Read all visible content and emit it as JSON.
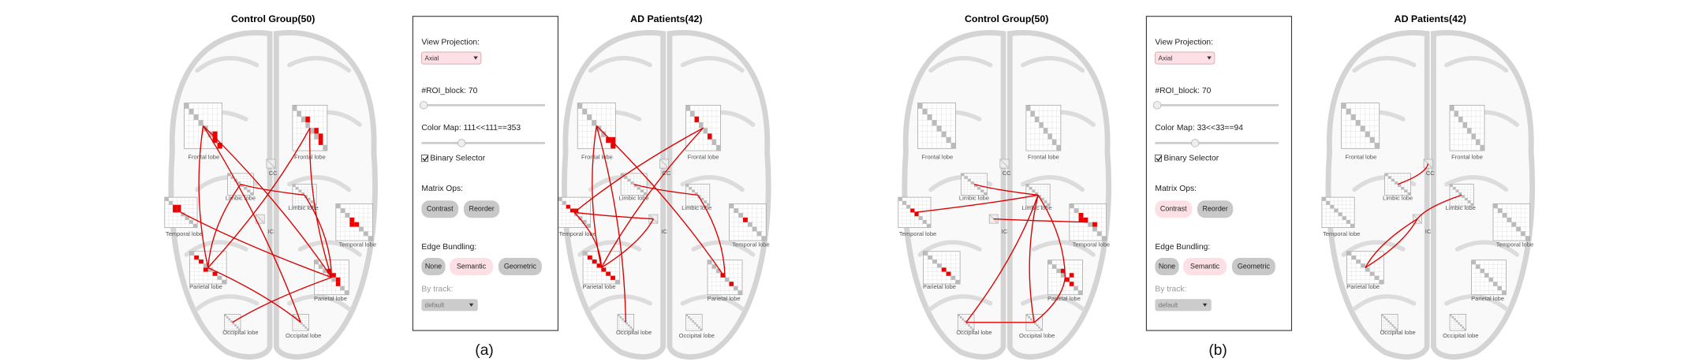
{
  "panels": [
    {
      "caption": "(a)",
      "brains": [
        {
          "title": "Control Group(50)",
          "nodes": [
            "Frontal lobe",
            "Frontal lobe",
            "Limbic lobe",
            "CC",
            "Limbic lobe",
            "Temporal lobe",
            "IC",
            "Temporal lobe",
            "Parietal lobe",
            "Parietal lobe",
            "Occipital lobe",
            "Occipital lobe"
          ]
        },
        {
          "title": "AD Patients(42)",
          "nodes": [
            "Frontal lobe",
            "Frontal lobe",
            "Limbic lobe",
            "CC",
            "Limbic lobe",
            "Temporal lobe",
            "IC",
            "Temporal lobe",
            "Parietal lobe",
            "Parietal lobe",
            "Occipital lobe",
            "Occipital lobe"
          ]
        }
      ],
      "controls": {
        "view_projection_label": "View Projection:",
        "projection": "Axial",
        "roi_block": "#ROI_block: 70",
        "color_map": "Color Map: 111<<111==353",
        "binary_selector": "Binary Selector",
        "matrix_ops_label": "Matrix Ops:",
        "matrix_ops": [
          "Contrast",
          "Reorder"
        ],
        "edge_bundling_label": "Edge Bundling:",
        "edge_bundling": [
          "None",
          "Semantic",
          "Geometric"
        ],
        "by_track_label": "By track:",
        "track": "default"
      }
    },
    {
      "caption": "(b)",
      "brains": [
        {
          "title": "Control Group(50)",
          "nodes": [
            "Frontal lobe",
            "Frontal lobe",
            "Limbic lobe",
            "CC",
            "Limbic lobe",
            "Temporal lobe",
            "IC",
            "Temporal lobe",
            "Parietal lobe",
            "Parietal lobe",
            "Occipital lobe",
            "Occipital lobe"
          ]
        },
        {
          "title": "AD Patients(42)",
          "nodes": [
            "Frontal lobe",
            "Frontal lobe",
            "Limbic lobe",
            "CC",
            "Limbic lobe",
            "Temporal lobe",
            "IC",
            "Temporal lobe",
            "Parietal lobe",
            "Parietal lobe",
            "Occipital lobe",
            "Occipital lobe"
          ]
        }
      ],
      "controls": {
        "view_projection_label": "View Projection:",
        "projection": "Axial",
        "roi_block": "#ROI_block: 70",
        "color_map": "Color Map: 33<<33==94",
        "binary_selector": "Binary Selector",
        "matrix_ops_label": "Matrix Ops:",
        "matrix_ops": [
          "Contrast",
          "Reorder"
        ],
        "edge_bundling_label": "Edge Bundling:",
        "edge_bundling": [
          "None",
          "Semantic",
          "Geometric"
        ],
        "by_track_label": "By track:",
        "track": "default"
      }
    }
  ]
}
